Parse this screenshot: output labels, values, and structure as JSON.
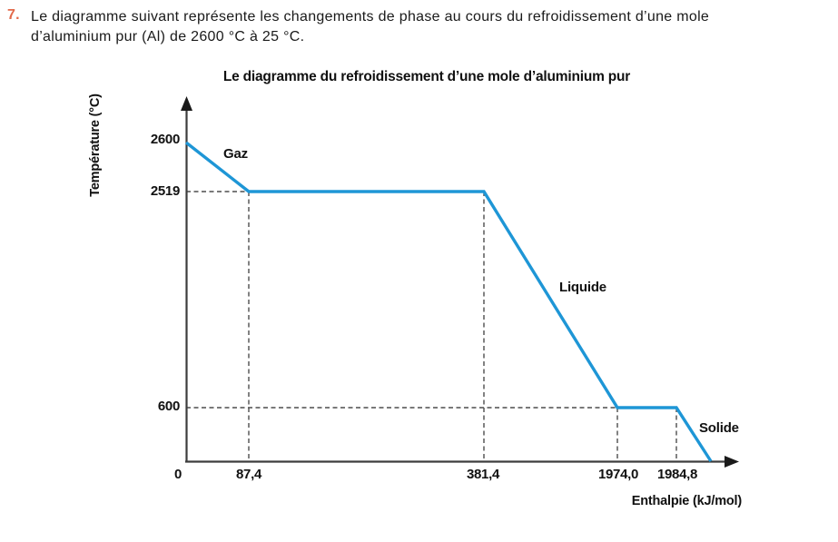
{
  "problem": {
    "number": "7.",
    "text_line1": "Le diagramme suivant représente les changements de phase au cours du refroidissement d’une mole",
    "text_line2": "d’aluminium pur (Al) de 2600 °C à 25 °C."
  },
  "chart_data": {
    "type": "line",
    "title": "Le diagramme du refroidissement d’une mole d’aluminium pur",
    "xlabel": "Enthalpie (kJ/mol)",
    "ylabel": "Température (°C)",
    "x_ticks": [
      "0",
      "87,4",
      "381,4",
      "1974,0",
      "1984,8"
    ],
    "y_ticks": [
      "2600",
      "2519",
      "600"
    ],
    "series": [
      {
        "points": [
          {
            "enthalpie_kj_mol": 0,
            "temperature_c": 2600
          },
          {
            "enthalpie_kj_mol": 87.4,
            "temperature_c": 2519
          },
          {
            "enthalpie_kj_mol": 381.4,
            "temperature_c": 2519
          },
          {
            "enthalpie_kj_mol": 1974.0,
            "temperature_c": 600
          },
          {
            "enthalpie_kj_mol": 1984.8,
            "temperature_c": 600
          },
          {
            "enthalpie_kj_mol": null,
            "temperature_c": 25
          }
        ]
      }
    ],
    "phases": [
      {
        "name": "Gaz"
      },
      {
        "name": "Liquide"
      },
      {
        "name": "Solide"
      }
    ],
    "line_color": "#1e96d6",
    "guide_style": "dashed guides at phase-change points",
    "legend": "none",
    "grid": "off"
  },
  "colors": {
    "problem_number": "#e2694a",
    "curve": "#1e96d6",
    "axis": "#3d3d3d",
    "dashed_guides": "#4d4d4d",
    "text": "#111111"
  }
}
